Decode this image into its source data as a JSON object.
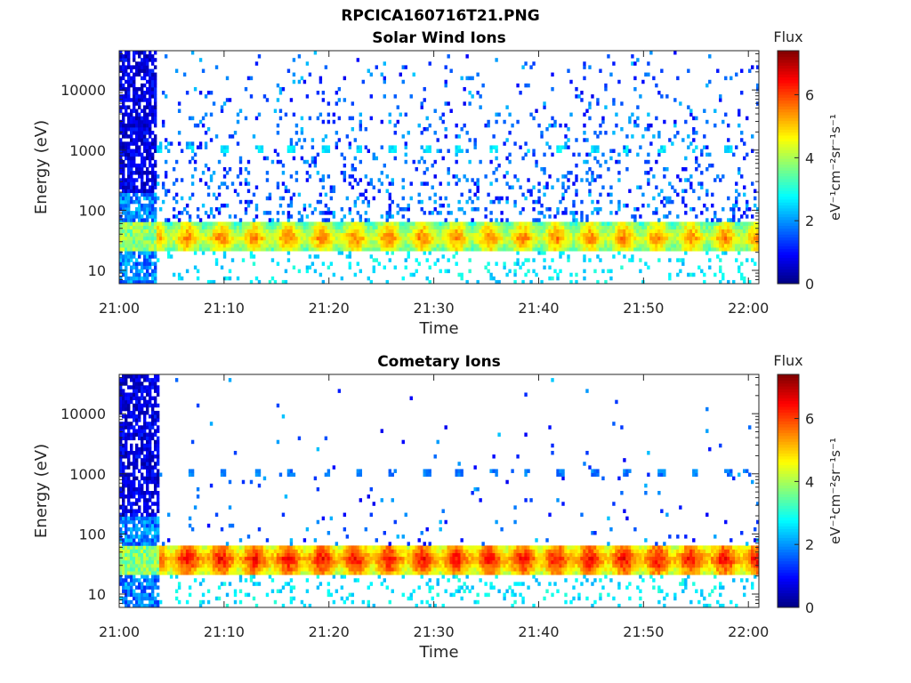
{
  "figure_title": "RPCICA160716T21.PNG",
  "chart_data": [
    {
      "type": "heatmap",
      "title": "Solar Wind Ions",
      "xlabel": "Time",
      "ylabel": "Energy (eV)",
      "x_range": [
        "21:00",
        "22:01"
      ],
      "x_ticks": [
        "21:00",
        "21:10",
        "21:20",
        "21:30",
        "21:40",
        "21:50",
        "22:00"
      ],
      "y_scale": "log",
      "y_range": [
        6,
        45000
      ],
      "y_ticks": [
        "10",
        "100",
        "1000",
        "10000"
      ],
      "colorbar": {
        "title": "Flux",
        "label": "eV⁻¹cm⁻²sr⁻¹s⁻¹",
        "range": [
          0,
          7.4
        ],
        "ticks": [
          "0",
          "2",
          "4",
          "6"
        ],
        "colormap": "jet"
      },
      "features": {
        "high_energy_burst_end_minute": 3.5,
        "main_band_energy_eV": [
          22,
          60
        ],
        "main_band_flux": 4.3,
        "peak_band_energy_eV": 35,
        "modulation_period_min": 3.2,
        "secondary_band_energy_eV": 1050,
        "secondary_band_flux": 2.6,
        "background_density": "high"
      }
    },
    {
      "type": "heatmap",
      "title": "Cometary Ions",
      "xlabel": "Time",
      "ylabel": "Energy (eV)",
      "x_range": [
        "21:00",
        "22:01"
      ],
      "x_ticks": [
        "21:00",
        "21:10",
        "21:20",
        "21:30",
        "21:40",
        "21:50",
        "22:00"
      ],
      "y_scale": "log",
      "y_range": [
        6,
        45000
      ],
      "y_ticks": [
        "10",
        "100",
        "1000",
        "10000"
      ],
      "colorbar": {
        "title": "Flux",
        "label": "eV⁻¹cm⁻²sr⁻¹s⁻¹",
        "range": [
          0,
          7.4
        ],
        "ticks": [
          "0",
          "2",
          "4",
          "6"
        ],
        "colormap": "jet"
      },
      "features": {
        "high_energy_burst_end_minute": 3.8,
        "main_band_energy_eV": [
          20,
          60
        ],
        "main_band_flux": 5.2,
        "peak_band_energy_eV": 38,
        "modulation_period_min": 3.2,
        "secondary_band_energy_eV": 1050,
        "secondary_band_flux": 1.8,
        "background_density": "low"
      }
    }
  ]
}
